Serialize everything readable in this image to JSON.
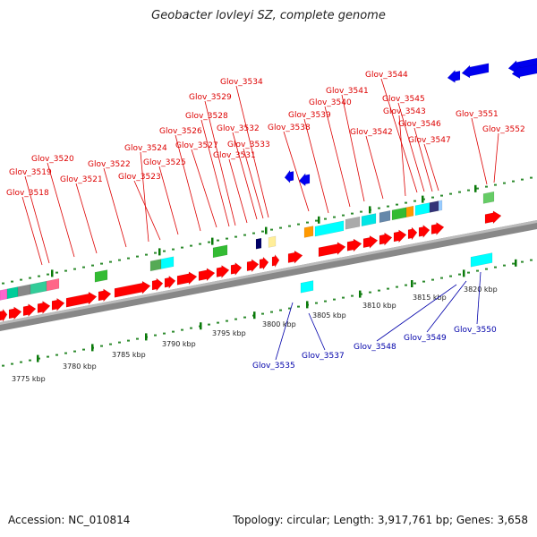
{
  "title": "Geobacter lovleyi SZ, complete genome",
  "footer": {
    "accession": "Accession: NC_010814",
    "summary": "Topology: circular; Length: 3,917,761 bp; Genes: 3,658"
  },
  "colors": {
    "forward_label": "#dd0000",
    "reverse_label": "#0000aa",
    "forward_gene": "#ff0000",
    "reverse_gene": "#0000ee",
    "backbone": "#999999",
    "tick": "#006600"
  },
  "scale_labels": [
    "3775 kbp",
    "3780 kbp",
    "3785 kbp",
    "3790 kbp",
    "3795 kbp",
    "3800 kbp",
    "3805 kbp",
    "3810 kbp",
    "3815 kbp",
    "3820 kbp"
  ],
  "forward_genes": [
    "Glov_3518",
    "Glov_3519",
    "Glov_3520",
    "Glov_3521",
    "Glov_3522",
    "Glov_3523",
    "Glov_3524",
    "Glov_3525",
    "Glov_3526",
    "Glov_3527",
    "Glov_3528",
    "Glov_3529",
    "Glov_3531",
    "Glov_3532",
    "Glov_3533",
    "Glov_3534",
    "Glov_3538",
    "Glov_3539",
    "Glov_3540",
    "Glov_3541",
    "Glov_3542",
    "Glov_3543",
    "Glov_3544",
    "Glov_3545",
    "Glov_3546",
    "Glov_3547",
    "Glov_3551",
    "Glov_3552"
  ],
  "reverse_genes": [
    "Glov_3535",
    "Glov_3537",
    "Glov_3548",
    "Glov_3549",
    "Glov_3550"
  ]
}
